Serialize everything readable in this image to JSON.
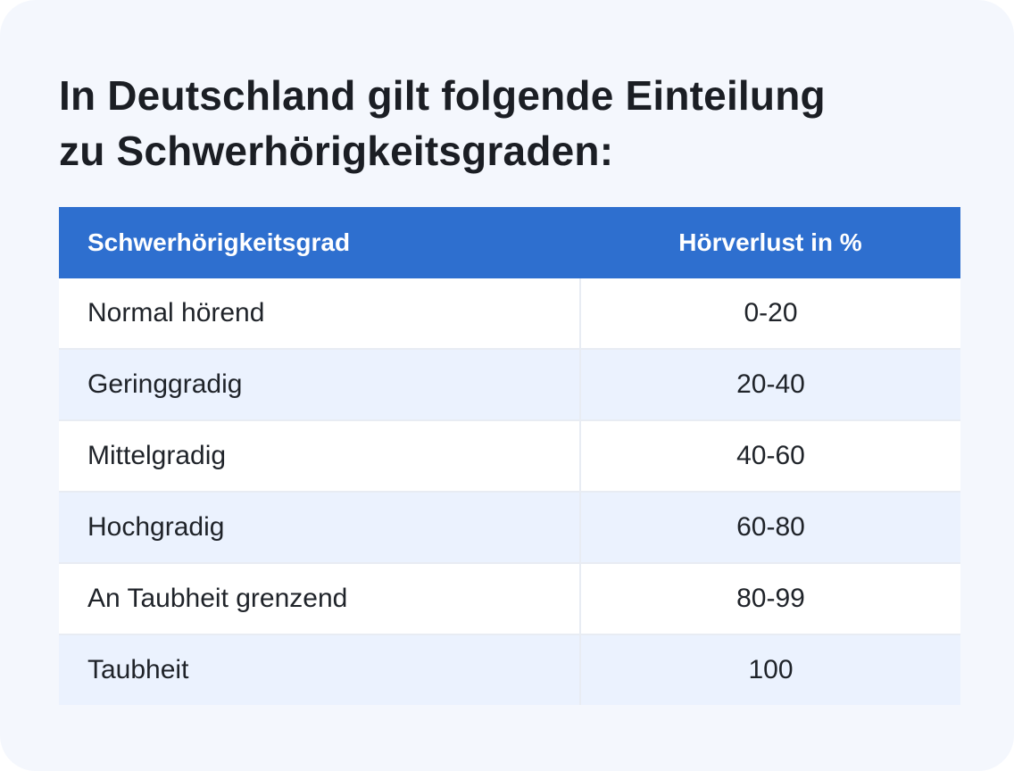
{
  "title": {
    "line1": "In Deutschland gilt folgende Einteilung",
    "line2": "zu Schwerhörigkeitsgraden:"
  },
  "table": {
    "headers": [
      "Schwerhörigkeitsgrad",
      "Hörverlust in %"
    ],
    "rows": [
      {
        "grade": "Normal hörend",
        "loss": "0-20"
      },
      {
        "grade": "Geringgradig",
        "loss": "20-40"
      },
      {
        "grade": "Mittelgradig",
        "loss": "40-60"
      },
      {
        "grade": "Hochgradig",
        "loss": "60-80"
      },
      {
        "grade": "An Taubheit grenzend",
        "loss": "80-99"
      },
      {
        "grade": "Taubheit",
        "loss": "100"
      }
    ]
  },
  "colors": {
    "header_bg": "#2e6fcf",
    "card_bg": "#f4f7fd",
    "row_alt_bg": "#ebf2fe"
  }
}
